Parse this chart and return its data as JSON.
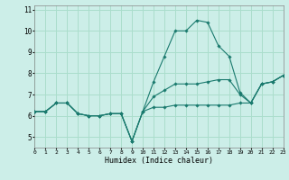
{
  "xlabel": "Humidex (Indice chaleur)",
  "bg_color": "#cceee8",
  "grid_color": "#aaddcc",
  "line_color": "#1a7a6e",
  "hours": [
    0,
    1,
    2,
    3,
    4,
    5,
    6,
    7,
    8,
    9,
    10,
    11,
    12,
    13,
    14,
    15,
    16,
    17,
    18,
    19,
    20,
    21,
    22,
    23
  ],
  "curve_max": [
    6.2,
    6.2,
    6.6,
    6.6,
    6.1,
    6.0,
    6.0,
    6.1,
    6.1,
    4.8,
    6.2,
    7.6,
    8.8,
    10.0,
    10.0,
    10.5,
    10.4,
    9.3,
    8.8,
    7.1,
    6.6,
    7.5,
    7.6,
    7.9
  ],
  "curve_min": [
    6.2,
    6.2,
    6.6,
    6.6,
    6.1,
    6.0,
    6.0,
    6.1,
    6.1,
    4.8,
    6.2,
    6.4,
    6.4,
    6.5,
    6.5,
    6.5,
    6.5,
    6.5,
    6.5,
    6.6,
    6.6,
    7.5,
    7.6,
    7.9
  ],
  "curve_mean": [
    6.2,
    6.2,
    6.6,
    6.6,
    6.1,
    6.0,
    6.0,
    6.1,
    6.1,
    4.8,
    6.2,
    6.9,
    7.2,
    7.5,
    7.5,
    7.5,
    7.6,
    7.7,
    7.7,
    7.0,
    6.6,
    7.5,
    7.6,
    7.9
  ],
  "xlim": [
    0,
    23
  ],
  "ylim": [
    4.5,
    11.2
  ],
  "yticks": [
    5,
    6,
    7,
    8,
    9,
    10,
    11
  ],
  "xticks": [
    0,
    1,
    2,
    3,
    4,
    5,
    6,
    7,
    8,
    9,
    10,
    11,
    12,
    13,
    14,
    15,
    16,
    17,
    18,
    19,
    20,
    21,
    22,
    23
  ]
}
